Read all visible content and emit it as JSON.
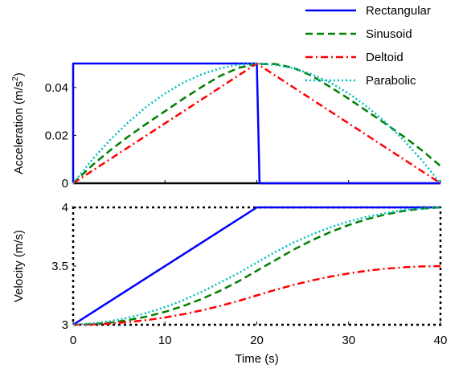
{
  "chart_data": [
    {
      "type": "line",
      "panel": "acceleration",
      "title": "",
      "xlabel": "",
      "ylabel": "Acceleration (m/s",
      "ylabel_sup": "2",
      "ylabel_close": ")",
      "xlim": [
        0,
        40
      ],
      "ylim": [
        0,
        0.05
      ],
      "xticks": [
        0,
        10,
        20,
        30,
        40
      ],
      "yticks": [
        0,
        0.02,
        0.04
      ],
      "ytick_labels": [
        "0",
        "0.02",
        "0.04"
      ],
      "grid": false,
      "legend_position": "top-right, above plot",
      "series": [
        {
          "name": "Rectangular",
          "color": "#0000ff",
          "dash": "solid",
          "points": [
            [
              0,
              0
            ],
            [
              0,
              0.05
            ],
            [
              20,
              0.05
            ],
            [
              20.3,
              0
            ],
            [
              40,
              0
            ]
          ]
        },
        {
          "name": "Sinusoid",
          "color": "#008000",
          "dash": "dashed",
          "points": [
            [
              0,
              0
            ],
            [
              2,
              0.0072
            ],
            [
              4,
              0.0137
            ],
            [
              6,
              0.0195
            ],
            [
              8,
              0.0249
            ],
            [
              10,
              0.0301
            ],
            [
              12,
              0.0353
            ],
            [
              14,
              0.0402
            ],
            [
              16,
              0.0448
            ],
            [
              18,
              0.0482
            ],
            [
              20,
              0.0498
            ],
            [
              22,
              0.0498
            ],
            [
              24,
              0.0482
            ],
            [
              26,
              0.0448
            ],
            [
              28,
              0.0402
            ],
            [
              30,
              0.0353
            ],
            [
              32,
              0.0301
            ],
            [
              34,
              0.0249
            ],
            [
              36,
              0.0195
            ],
            [
              38,
              0.0137
            ],
            [
              40,
              0.0072
            ]
          ]
        },
        {
          "name": "Deltoid",
          "color": "#ff0000",
          "dash": "dashdot",
          "points": [
            [
              0,
              0
            ],
            [
              20,
              0.05
            ],
            [
              40,
              0
            ]
          ]
        },
        {
          "name": "Parabolic",
          "color": "#00bfbf",
          "dash": "dotted",
          "points": [
            [
              0,
              0
            ],
            [
              2,
              0.0095
            ],
            [
              4,
              0.018
            ],
            [
              6,
              0.0255
            ],
            [
              8,
              0.032
            ],
            [
              10,
              0.0375
            ],
            [
              12,
              0.042
            ],
            [
              14,
              0.0455
            ],
            [
              16,
              0.048
            ],
            [
              18,
              0.0495
            ],
            [
              20,
              0.05
            ],
            [
              22,
              0.0495
            ],
            [
              24,
              0.048
            ],
            [
              26,
              0.0455
            ],
            [
              28,
              0.042
            ],
            [
              30,
              0.0375
            ],
            [
              32,
              0.032
            ],
            [
              34,
              0.0255
            ],
            [
              36,
              0.018
            ],
            [
              38,
              0.0095
            ],
            [
              40,
              0
            ]
          ]
        }
      ]
    },
    {
      "type": "line",
      "panel": "velocity",
      "title": "",
      "xlabel": "Time (s)",
      "ylabel": "Velocity (m/s)",
      "xlim": [
        0,
        40
      ],
      "ylim": [
        3,
        4
      ],
      "xticks": [
        0,
        10,
        20,
        30,
        40
      ],
      "yticks": [
        3,
        3.5,
        4
      ],
      "ytick_labels": [
        "3",
        "3.5",
        "4"
      ],
      "grid": false,
      "series": [
        {
          "name": "Rectangular",
          "color": "#0000ff",
          "dash": "solid",
          "points": [
            [
              0,
              3
            ],
            [
              20,
              4
            ],
            [
              40,
              4
            ]
          ]
        },
        {
          "name": "Sinusoid",
          "color": "#008000",
          "dash": "dashed",
          "points": [
            [
              0,
              3
            ],
            [
              2,
              3.005
            ],
            [
              4,
              3.018
            ],
            [
              6,
              3.04
            ],
            [
              8,
              3.07
            ],
            [
              10,
              3.11
            ],
            [
              12,
              3.16
            ],
            [
              14,
              3.22
            ],
            [
              16,
              3.29
            ],
            [
              18,
              3.37
            ],
            [
              20,
              3.46
            ],
            [
              22,
              3.55
            ],
            [
              24,
              3.64
            ],
            [
              26,
              3.72
            ],
            [
              28,
              3.79
            ],
            [
              30,
              3.85
            ],
            [
              32,
              3.9
            ],
            [
              34,
              3.94
            ],
            [
              36,
              3.97
            ],
            [
              38,
              3.99
            ],
            [
              40,
              4.0
            ]
          ]
        },
        {
          "name": "Deltoid",
          "color": "#ff0000",
          "dash": "dashdot",
          "points": [
            [
              0,
              3
            ],
            [
              2,
              3.0025
            ],
            [
              4,
              3.01
            ],
            [
              6,
              3.0225
            ],
            [
              8,
              3.04
            ],
            [
              10,
              3.0625
            ],
            [
              12,
              3.09
            ],
            [
              14,
              3.1225
            ],
            [
              16,
              3.16
            ],
            [
              18,
              3.2025
            ],
            [
              20,
              3.25
            ],
            [
              22,
              3.2975
            ],
            [
              24,
              3.34
            ],
            [
              26,
              3.3775
            ],
            [
              28,
              3.41
            ],
            [
              30,
              3.4375
            ],
            [
              32,
              3.46
            ],
            [
              34,
              3.4775
            ],
            [
              36,
              3.49
            ],
            [
              38,
              3.4975
            ],
            [
              40,
              3.5
            ]
          ]
        },
        {
          "name": "Parabolic",
          "color": "#00bfbf",
          "dash": "dotted",
          "points": [
            [
              0,
              3
            ],
            [
              2,
              3.01
            ],
            [
              4,
              3.03
            ],
            [
              6,
              3.06
            ],
            [
              8,
              3.1
            ],
            [
              10,
              3.15
            ],
            [
              12,
              3.21
            ],
            [
              14,
              3.28
            ],
            [
              16,
              3.36
            ],
            [
              18,
              3.44
            ],
            [
              20,
              3.53
            ],
            [
              22,
              3.62
            ],
            [
              24,
              3.7
            ],
            [
              26,
              3.77
            ],
            [
              28,
              3.83
            ],
            [
              30,
              3.88
            ],
            [
              32,
              3.92
            ],
            [
              34,
              3.95
            ],
            [
              36,
              3.98
            ],
            [
              38,
              3.99
            ],
            [
              40,
              4.0
            ]
          ]
        }
      ]
    }
  ]
}
